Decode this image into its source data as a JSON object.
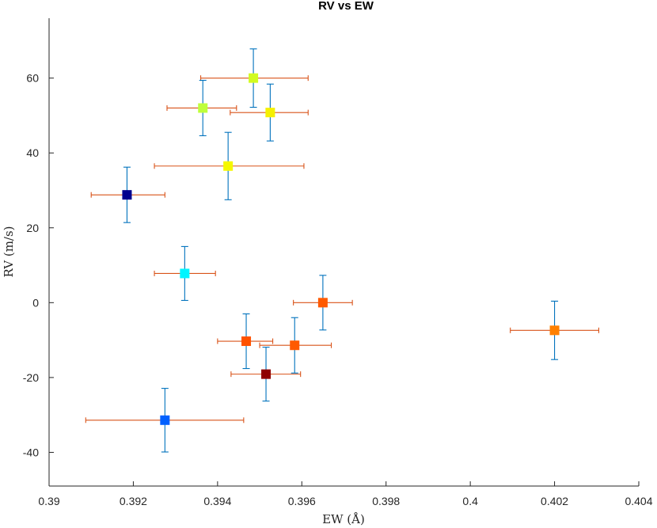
{
  "chart_data": {
    "type": "scatter",
    "title": "RV vs EW",
    "xlabel": "EW (Å)",
    "ylabel": "RV (m/s)",
    "xlim": [
      0.39,
      0.404
    ],
    "ylim": [
      -49,
      76
    ],
    "xticks": [
      0.39,
      0.392,
      0.394,
      0.396,
      0.398,
      0.4,
      0.402,
      0.404
    ],
    "xtick_labels": [
      "0.39",
      "0.392",
      "0.394",
      "0.396",
      "0.398",
      "0.4",
      "0.402",
      "0.404"
    ],
    "yticks": [
      -40,
      -20,
      0,
      20,
      40,
      60
    ],
    "ytick_labels": [
      "-40",
      "-20",
      "0",
      "20",
      "40",
      "60"
    ],
    "grid": false,
    "errorbar_colors": {
      "x": "#d95319",
      "y": "#0072bd"
    },
    "points": [
      {
        "x": 0.39485,
        "y": 60.0,
        "xerr": [
          0.00125,
          0.0013
        ],
        "yerr": 7.8,
        "color": "#d2fb20"
      },
      {
        "x": 0.39365,
        "y": 52.0,
        "xerr": [
          0.00085,
          0.0008
        ],
        "yerr": 7.4,
        "color": "#bfff3b"
      },
      {
        "x": 0.39525,
        "y": 50.8,
        "xerr": [
          0.00095,
          0.0009
        ],
        "yerr": 7.6,
        "color": "#f5f000"
      },
      {
        "x": 0.39425,
        "y": 36.5,
        "xerr": [
          0.00175,
          0.0018
        ],
        "yerr": 9.0,
        "color": "#f5f800"
      },
      {
        "x": 0.39185,
        "y": 28.8,
        "xerr": [
          0.00085,
          0.0009
        ],
        "yerr": 7.4,
        "color": "#00008f"
      },
      {
        "x": 0.39322,
        "y": 7.8,
        "xerr": [
          0.00072,
          0.00073
        ],
        "yerr": 7.2,
        "color": "#00f5ff"
      },
      {
        "x": 0.3965,
        "y": 0.0,
        "xerr": [
          0.0007,
          0.0007
        ],
        "yerr": 7.3,
        "color": "#ff5a00"
      },
      {
        "x": 0.402,
        "y": -7.4,
        "xerr": [
          0.00105,
          0.00105
        ],
        "yerr": 7.8,
        "color": "#ff8000"
      },
      {
        "x": 0.39468,
        "y": -10.3,
        "xerr": [
          0.00068,
          0.00063
        ],
        "yerr": 7.3,
        "color": "#ff5200"
      },
      {
        "x": 0.39583,
        "y": -11.4,
        "xerr": [
          0.00083,
          0.00087
        ],
        "yerr": 7.4,
        "color": "#ff5a00"
      },
      {
        "x": 0.39515,
        "y": -19.1,
        "xerr": [
          0.00083,
          0.00082
        ],
        "yerr": 7.2,
        "color": "#8f0000"
      },
      {
        "x": 0.39275,
        "y": -31.4,
        "xerr": [
          0.00188,
          0.00187
        ],
        "yerr": 8.5,
        "color": "#0060ff"
      }
    ]
  }
}
